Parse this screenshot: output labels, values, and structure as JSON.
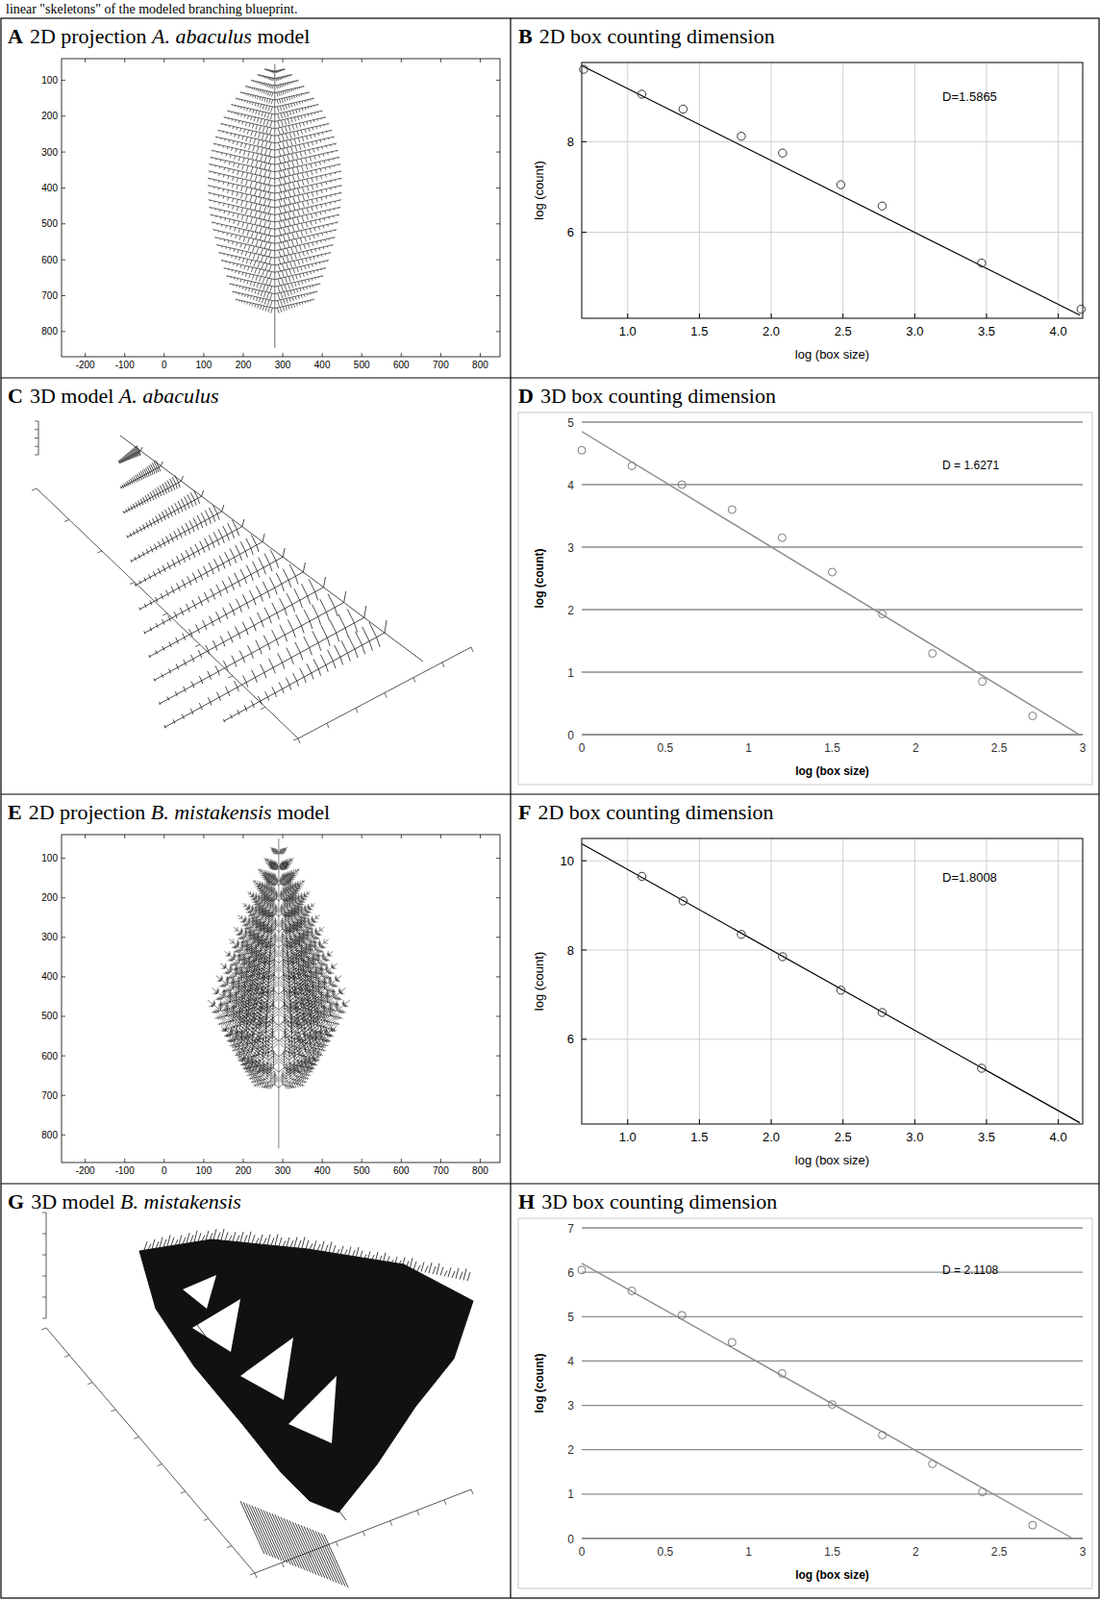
{
  "caption": "linear \"skeletons\" of the modeled branching blueprint.",
  "images": [
    {
      "letter": "A",
      "title": "2D projection A. abaculus model",
      "xlim": [
        -260,
        850
      ],
      "ylim": [
        870,
        40
      ],
      "xticks": [
        -200,
        -100,
        0,
        100,
        200,
        300,
        400,
        500,
        600,
        700,
        800
      ],
      "yticks": [
        100,
        200,
        300,
        400,
        500,
        600,
        700,
        800
      ]
    },
    {
      "letter": "C",
      "title": "3D model A. abaculus"
    },
    {
      "letter": "E",
      "title": "2D projection B. mistakensis model",
      "xlim": [
        -260,
        850
      ],
      "ylim": [
        870,
        40
      ],
      "xticks": [
        -200,
        -100,
        0,
        100,
        200,
        300,
        400,
        500,
        600,
        700,
        800
      ],
      "yticks": [
        100,
        200,
        300,
        400,
        500,
        600,
        700,
        800
      ]
    },
    {
      "letter": "G",
      "title": "3D model B. mistakensis"
    }
  ],
  "chart_data": [
    {
      "type": "scatter",
      "letter": "B",
      "title": "2D box counting dimension",
      "x": [
        0.693,
        1.099,
        1.386,
        1.792,
        2.079,
        2.485,
        2.773,
        3.466,
        4.159
      ],
      "values": [
        9.6,
        9.05,
        8.72,
        8.12,
        7.75,
        7.05,
        6.58,
        5.32,
        4.3
      ],
      "fit_line": {
        "x": [
          0.68,
          4.15
        ],
        "values": [
          9.68,
          4.17
        ]
      },
      "annotation": "D=1.5865",
      "x_label": "log (box size)",
      "y_label": "log (count)",
      "xlim": [
        0.68,
        4.17
      ],
      "ylim": [
        4.1,
        9.75
      ],
      "xticks": [
        {
          "value": 1,
          "label": "1.0"
        },
        1.5,
        {
          "value": 2,
          "label": "2.0"
        },
        2.5,
        {
          "value": 3,
          "label": "3.0"
        },
        3.5,
        {
          "value": 4,
          "label": "4.0"
        }
      ],
      "yticks": [
        6,
        8
      ],
      "grid": true,
      "marker": "circle"
    },
    {
      "type": "scatter",
      "letter": "D",
      "title": "3D box counting dimension",
      "x": [
        0,
        0.3,
        0.6,
        0.9,
        1.2,
        1.5,
        1.8,
        2.1,
        2.4,
        2.7
      ],
      "values": [
        4.55,
        4.3,
        4.0,
        3.6,
        3.15,
        2.6,
        1.93,
        1.3,
        0.85,
        0.3
      ],
      "fit_line": {
        "x": [
          0,
          2.98
        ],
        "values": [
          4.85,
          0
        ]
      },
      "annotation": "D = 1.6271",
      "x_label": "log (box size)",
      "y_label": "log (count)",
      "xlim": [
        0,
        3
      ],
      "ylim": [
        0,
        5
      ],
      "xticks": [
        0,
        0.5,
        1,
        1.5,
        2,
        2.5,
        3
      ],
      "yticks": [
        0,
        1,
        2,
        3,
        4,
        5
      ],
      "grid": "y",
      "marker": "circle"
    },
    {
      "type": "scatter",
      "letter": "F",
      "title": "2D box counting dimension",
      "x": [
        1.099,
        1.386,
        1.792,
        2.079,
        2.485,
        2.773,
        3.466
      ],
      "values": [
        9.65,
        9.1,
        8.35,
        7.85,
        7.1,
        6.6,
        5.35
      ],
      "fit_line": {
        "x": [
          0.68,
          4.15
        ],
        "values": [
          10.38,
          4.13
        ]
      },
      "annotation": "D=1.8008",
      "x_label": "log (box size)",
      "y_label": "log (count)",
      "xlim": [
        0.68,
        4.17
      ],
      "ylim": [
        4.1,
        10.5
      ],
      "xticks": [
        {
          "value": 1,
          "label": "1.0"
        },
        1.5,
        {
          "value": 2,
          "label": "2.0"
        },
        2.5,
        {
          "value": 3,
          "label": "3.0"
        },
        3.5,
        {
          "value": 4,
          "label": "4.0"
        }
      ],
      "yticks": [
        6,
        8,
        10
      ],
      "grid": true,
      "marker": "circle"
    },
    {
      "type": "scatter",
      "letter": "H",
      "title": "3D box counting dimension",
      "x": [
        0,
        0.3,
        0.6,
        0.9,
        1.2,
        1.5,
        1.8,
        2.1,
        2.4,
        2.7
      ],
      "values": [
        6.05,
        5.58,
        5.03,
        4.42,
        3.72,
        3.02,
        2.33,
        1.68,
        1.05,
        0.3
      ],
      "fit_line": {
        "x": [
          0,
          2.94
        ],
        "values": [
          6.2,
          0
        ]
      },
      "annotation": "D = 2.1108",
      "x_label": "log (box size)",
      "y_label": "log (count)",
      "xlim": [
        0,
        3
      ],
      "ylim": [
        0,
        7
      ],
      "xticks": [
        0,
        0.5,
        1,
        1.5,
        2,
        2.5,
        3
      ],
      "yticks": [
        0,
        1,
        2,
        3,
        4,
        5,
        6,
        7
      ],
      "grid": "y",
      "marker": "circle"
    }
  ]
}
